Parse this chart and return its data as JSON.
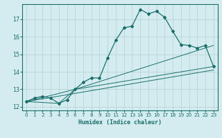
{
  "xlabel": "Humidex (Indice chaleur)",
  "bg_color": "#d4ecf0",
  "grid_color": "#b8d4d8",
  "line_color": "#1a6e6a",
  "xlim": [
    -0.5,
    23.5
  ],
  "ylim": [
    11.8,
    17.85
  ],
  "xticks": [
    0,
    1,
    2,
    3,
    4,
    5,
    6,
    7,
    8,
    9,
    10,
    11,
    12,
    13,
    14,
    15,
    16,
    17,
    18,
    19,
    20,
    21,
    22,
    23
  ],
  "yticks": [
    12,
    13,
    14,
    15,
    16,
    17
  ],
  "line1_x": [
    0,
    1,
    2,
    3,
    4,
    5,
    6,
    7,
    8,
    9,
    10,
    11,
    12,
    13,
    14,
    15,
    16,
    17,
    18,
    19,
    20,
    21,
    22,
    23
  ],
  "line1_y": [
    12.3,
    12.5,
    12.6,
    12.5,
    12.2,
    12.4,
    13.0,
    13.4,
    13.65,
    13.65,
    14.8,
    15.8,
    16.5,
    16.6,
    17.55,
    17.3,
    17.45,
    17.1,
    16.3,
    15.55,
    15.5,
    15.35,
    15.5,
    14.3
  ],
  "line2_x": [
    0,
    4,
    6,
    23
  ],
  "line2_y": [
    12.3,
    12.2,
    13.0,
    14.3
  ],
  "line3_x": [
    0,
    23
  ],
  "line3_y": [
    12.3,
    14.1
  ],
  "line4_x": [
    0,
    6,
    23
  ],
  "line4_y": [
    12.3,
    13.0,
    15.5
  ]
}
